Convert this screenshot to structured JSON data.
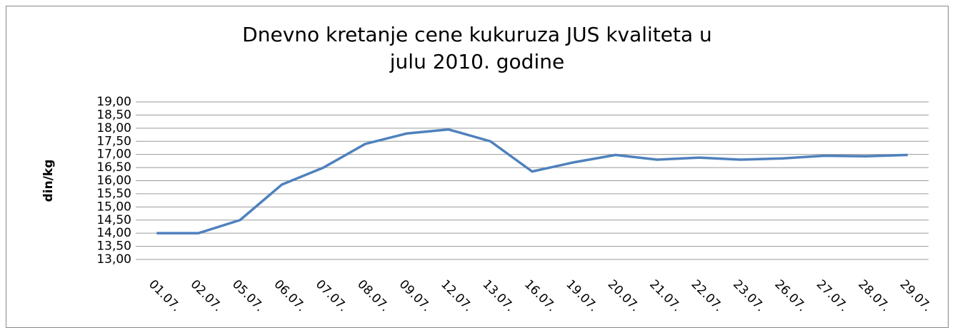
{
  "chart_data": {
    "type": "line",
    "title": "Dnevno kretanje cene kukuruza JUS kvaliteta u julu 2010. godine",
    "y_label": "din/kg",
    "categories": [
      "01.07.",
      "02.07.",
      "05.07.",
      "06.07.",
      "07.07.",
      "08.07.",
      "09.07.",
      "12.07.",
      "13.07.",
      "16.07.",
      "19.07.",
      "20.07.",
      "21.07.",
      "22.07.",
      "23.07.",
      "26.07.",
      "27.07.",
      "28.07.",
      "29.07."
    ],
    "series": [
      {
        "name": "din/kg",
        "color": "#4f81bd",
        "values": [
          14.0,
          14.0,
          14.5,
          15.85,
          16.5,
          17.4,
          17.8,
          17.95,
          17.5,
          16.35,
          16.7,
          16.98,
          16.8,
          16.88,
          16.8,
          16.85,
          16.95,
          16.93,
          16.98
        ]
      }
    ],
    "ylim": [
      13,
      19
    ],
    "yticks": [
      {
        "value": 13,
        "label": "13,00"
      },
      {
        "value": 13.5,
        "label": "13,50"
      },
      {
        "value": 14,
        "label": "14,00"
      },
      {
        "value": 14.5,
        "label": "14,50"
      },
      {
        "value": 15,
        "label": "15,00"
      },
      {
        "value": 15.5,
        "label": "15,50"
      },
      {
        "value": 16,
        "label": "16,00"
      },
      {
        "value": 16.5,
        "label": "16,50"
      },
      {
        "value": 17,
        "label": "17,00"
      },
      {
        "value": 17.5,
        "label": "17,50"
      },
      {
        "value": 18,
        "label": "18,00"
      },
      {
        "value": 18.5,
        "label": "18,50"
      },
      {
        "value": 19,
        "label": "19,00"
      }
    ],
    "grid": true
  }
}
